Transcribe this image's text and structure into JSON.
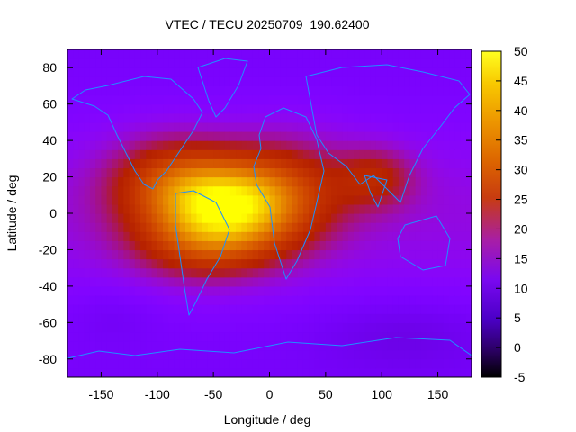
{
  "chart_data": {
    "type": "heatmap",
    "title": "VTEC / TECU 20250709_190.62400",
    "xlabel": "Longitude / deg",
    "ylabel": "Latitude / deg",
    "xlim": [
      -180,
      180
    ],
    "ylim": [
      -90,
      90
    ],
    "x_ticks": [
      -150,
      -100,
      -50,
      0,
      50,
      100,
      150
    ],
    "y_ticks": [
      -80,
      -60,
      -40,
      -20,
      0,
      20,
      40,
      60,
      80
    ],
    "colorbar": {
      "range": [
        -5,
        50
      ],
      "ticks": [
        -5,
        0,
        5,
        10,
        15,
        20,
        25,
        30,
        35,
        40,
        45,
        50
      ],
      "colormap": "gnuplot-pm3d"
    },
    "grid": false,
    "overlay": "coastlines",
    "field_features": [
      {
        "name": "main-peak",
        "lon": -35,
        "lat": 5,
        "vtec": 48
      },
      {
        "name": "northern-crest",
        "lon": -85,
        "lat": 18,
        "vtec": 32
      },
      {
        "name": "southern-crest",
        "lon": -55,
        "lat": -18,
        "vtec": 33
      },
      {
        "name": "asia-secondary",
        "lon": 95,
        "lat": 20,
        "vtec": 28
      },
      {
        "name": "background-low",
        "lon": 100,
        "lat": -60,
        "vtec": 6
      }
    ]
  }
}
